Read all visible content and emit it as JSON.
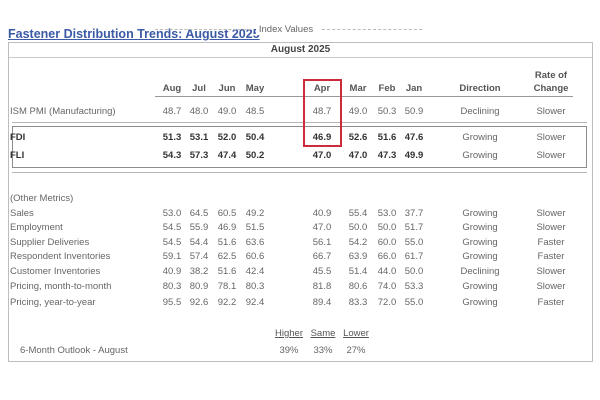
{
  "title": "Fastener Distribution Trends: August 2025",
  "month_header": "August 2025",
  "index_values_label": "Index Values",
  "columns": [
    "Aug",
    "Jul",
    "Jun",
    "May",
    "Apr",
    "Mar",
    "Feb",
    "Jan"
  ],
  "direction_header": "Direction",
  "rate_header_line1": "Rate of",
  "rate_header_line2": "Change",
  "rows": [
    {
      "label": "ISM PMI (Manufacturing)",
      "values": [
        "48.7",
        "48.0",
        "49.0",
        "48.5",
        "48.7",
        "49.0",
        "50.3",
        "50.9"
      ],
      "direction": "Declining",
      "rate": "Slower"
    },
    {
      "label": "FDI",
      "values": [
        "51.3",
        "53.1",
        "52.0",
        "50.4",
        "46.9",
        "52.6",
        "51.6",
        "47.6"
      ],
      "direction": "Growing",
      "rate": "Slower"
    },
    {
      "label": "FLI",
      "values": [
        "54.3",
        "57.3",
        "47.4",
        "50.2",
        "47.0",
        "47.0",
        "47.3",
        "49.9"
      ],
      "direction": "Growing",
      "rate": "Slower"
    }
  ],
  "other_metrics_label": "(Other Metrics)",
  "other_rows": [
    {
      "label": "Sales",
      "values": [
        "53.0",
        "64.5",
        "60.5",
        "49.2",
        "40.9",
        "55.4",
        "53.0",
        "37.7"
      ],
      "direction": "Growing",
      "rate": "Slower"
    },
    {
      "label": "Employment",
      "values": [
        "54.5",
        "55.9",
        "46.9",
        "51.5",
        "47.0",
        "50.0",
        "50.0",
        "51.7"
      ],
      "direction": "Growing",
      "rate": "Slower"
    },
    {
      "label": "Supplier Deliveries",
      "values": [
        "54.5",
        "54.4",
        "51.6",
        "63.6",
        "56.1",
        "54.2",
        "60.0",
        "55.0"
      ],
      "direction": "Growing",
      "rate": "Faster"
    },
    {
      "label": "Respondent Inventories",
      "values": [
        "59.1",
        "57.4",
        "62.5",
        "60.6",
        "66.7",
        "63.9",
        "66.0",
        "61.7"
      ],
      "direction": "Growing",
      "rate": "Faster"
    },
    {
      "label": "Customer Inventories",
      "values": [
        "40.9",
        "38.2",
        "51.6",
        "42.4",
        "45.5",
        "51.4",
        "44.0",
        "50.0"
      ],
      "direction": "Declining",
      "rate": "Slower"
    },
    {
      "label": "Pricing, month-to-month",
      "values": [
        "80.3",
        "80.9",
        "78.1",
        "80.3",
        "81.8",
        "80.6",
        "74.0",
        "53.3"
      ],
      "direction": "Growing",
      "rate": "Slower"
    },
    {
      "label": "Pricing, year-to-year",
      "values": [
        "95.5",
        "92.6",
        "92.2",
        "92.4",
        "89.4",
        "83.3",
        "72.0",
        "55.0"
      ],
      "direction": "Growing",
      "rate": "Faster"
    }
  ],
  "outlook": {
    "label": "6-Month Outlook - August",
    "headers": [
      "Higher",
      "Same",
      "Lower"
    ],
    "values": [
      "39%",
      "33%",
      "27%"
    ]
  },
  "highlight_color": "#cc2b3c",
  "title_color": "#3b5aa5"
}
